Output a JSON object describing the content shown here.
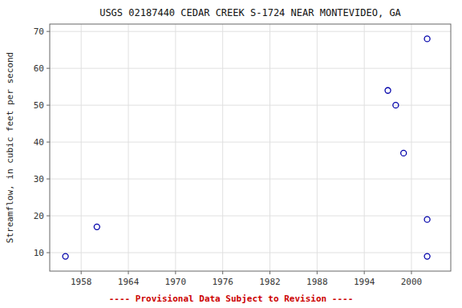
{
  "chart_data": {
    "type": "scatter",
    "title": "USGS 02187440 CEDAR CREEK S-1724 NEAR MONTEVIDEO, GA",
    "y_label": "Streamflow, in cubic feet per second",
    "x": [
      1956,
      1960,
      1997,
      1998,
      1999,
      2002,
      2002,
      2002
    ],
    "values": [
      9,
      17,
      54,
      50,
      37,
      68,
      19,
      9
    ],
    "color": "#0000AA",
    "marker": "circle",
    "xlim": [
      1954,
      2005
    ],
    "ylim": [
      5,
      72
    ],
    "xticks": [
      1958,
      1964,
      1970,
      1976,
      1982,
      1988,
      1994,
      2000
    ],
    "yticks": [
      10,
      20,
      30,
      40,
      50,
      60,
      70
    ],
    "grid": true,
    "footnote": {
      "text": "---- Provisional Data Subject to Revision ----",
      "color": "#cc0000"
    }
  }
}
